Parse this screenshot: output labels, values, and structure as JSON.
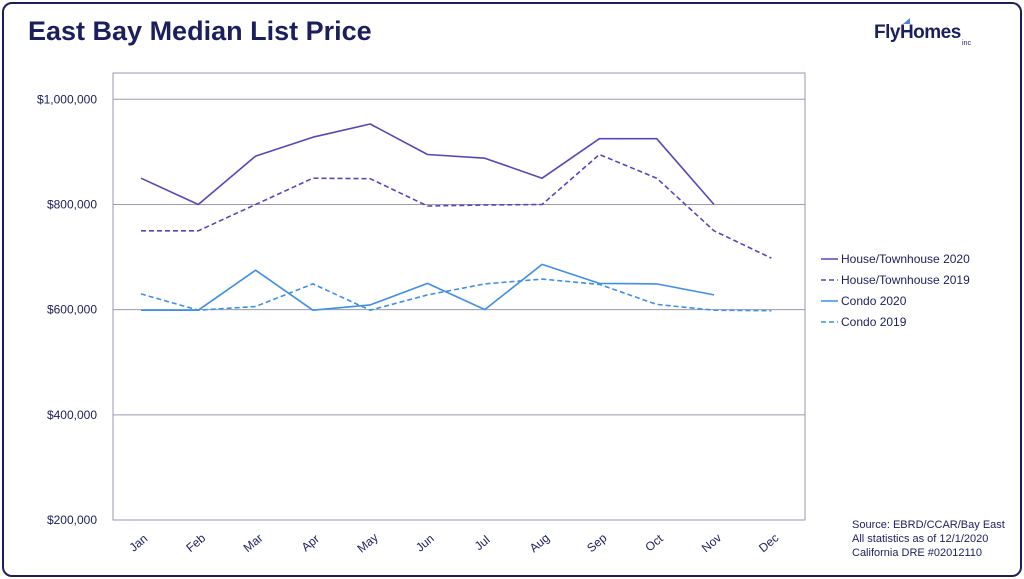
{
  "title": "East Bay Median List Price",
  "brand": {
    "name": "FlyHomes",
    "suffix": "inc"
  },
  "source": {
    "line1": "Source: EBRD/CCAR/Bay East",
    "line2": "All statistics as of 12/1/2020",
    "line3": "California DRE #02012110"
  },
  "colors": {
    "house": "#5b45b8",
    "condo": "#3f8fe6",
    "title": "#1b1f5e",
    "grid": "#9a9ab0",
    "axis_text": "#1b1f5e"
  },
  "chart_data": {
    "type": "line",
    "title": "East Bay Median List Price",
    "xlabel": "",
    "ylabel": "",
    "categories": [
      "Jan",
      "Feb",
      "Mar",
      "Apr",
      "May",
      "Jun",
      "Jul",
      "Aug",
      "Sep",
      "Oct",
      "Nov",
      "Dec"
    ],
    "yticks": [
      "$200,000",
      "$400,000",
      "$600,000",
      "$800,000",
      "$1,000,000"
    ],
    "ylim": [
      200000,
      1050000
    ],
    "grid": true,
    "legend_position": "right",
    "series": [
      {
        "name": "House/Townhouse 2020",
        "color": "#5b45b8",
        "dash": false,
        "values": [
          850000,
          800000,
          892000,
          928000,
          953000,
          895000,
          888000,
          850000,
          925000,
          925000,
          800000,
          null
        ]
      },
      {
        "name": "House/Townhouse 2019",
        "color": "#5b45b8",
        "dash": true,
        "values": [
          750000,
          750000,
          800000,
          850000,
          849000,
          797000,
          799000,
          800000,
          895000,
          850000,
          750000,
          698000
        ]
      },
      {
        "name": "Condo 2020",
        "color": "#3f8fe6",
        "dash": false,
        "values": [
          599000,
          599000,
          675000,
          599000,
          609000,
          650000,
          600000,
          686000,
          650000,
          649000,
          628000,
          null
        ]
      },
      {
        "name": "Condo 2019",
        "color": "#3f8fe6",
        "dash": true,
        "values": [
          630000,
          599000,
          606000,
          649000,
          599000,
          628000,
          649000,
          658000,
          648000,
          610000,
          599000,
          598000
        ]
      }
    ]
  }
}
